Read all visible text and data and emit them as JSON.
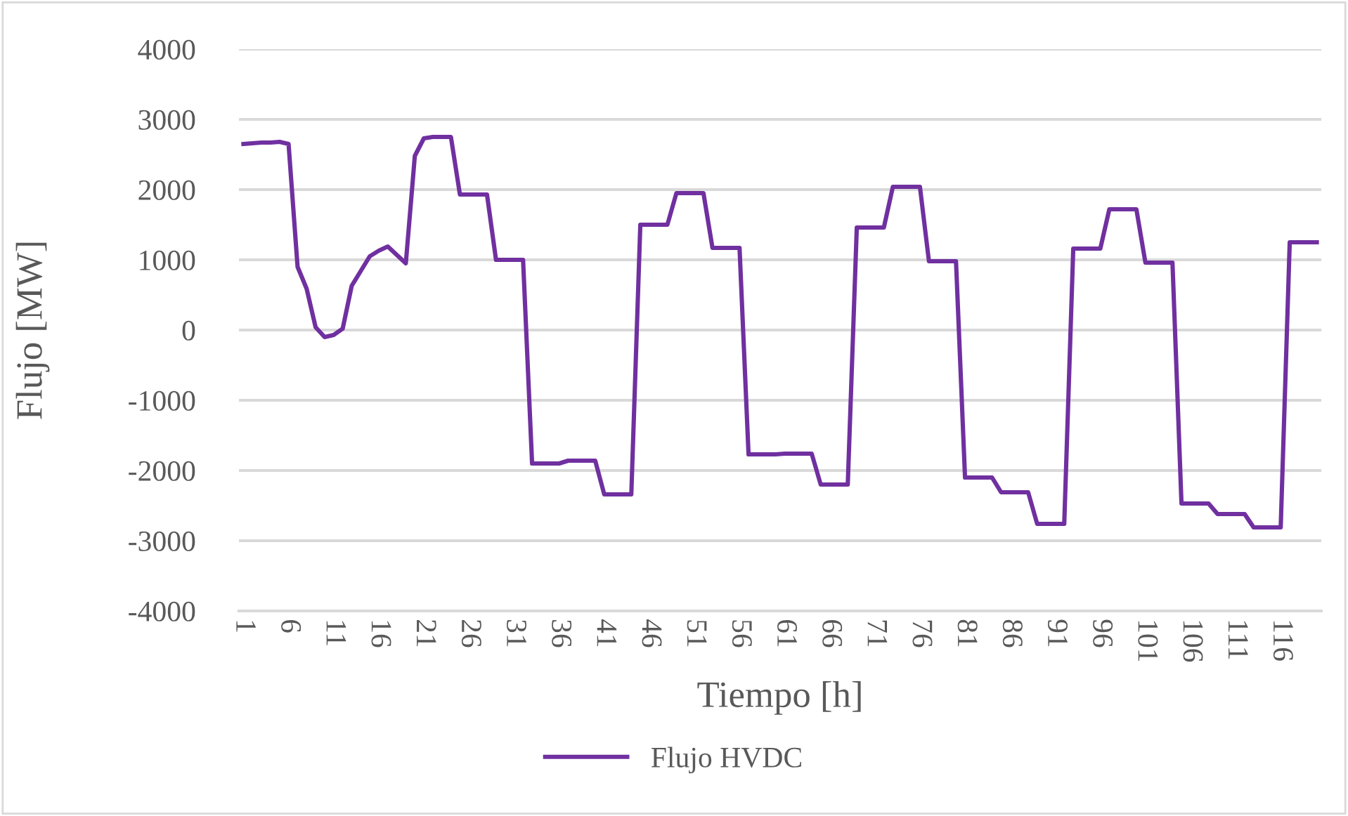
{
  "chart_data": {
    "type": "line",
    "xlabel": "Tiempo [h]",
    "ylabel": "Flujo [MW]",
    "categories": [
      "1",
      null,
      null,
      null,
      null,
      "6",
      null,
      null,
      null,
      null,
      "11",
      null,
      null,
      null,
      null,
      "16",
      null,
      null,
      null,
      null,
      "21",
      null,
      null,
      null,
      null,
      "26",
      null,
      null,
      null,
      null,
      "31",
      null,
      null,
      null,
      null,
      "36",
      null,
      null,
      null,
      null,
      "41",
      null,
      null,
      null,
      null,
      "46",
      null,
      null,
      null,
      null,
      "51",
      null,
      null,
      null,
      null,
      "56",
      null,
      null,
      null,
      null,
      "61",
      null,
      null,
      null,
      null,
      "66",
      null,
      null,
      null,
      null,
      "71",
      null,
      null,
      null,
      null,
      "76",
      null,
      null,
      null,
      null,
      "81",
      null,
      null,
      null,
      null,
      "86",
      null,
      null,
      null,
      null,
      "91",
      null,
      null,
      null,
      null,
      "96",
      null,
      null,
      null,
      null,
      "101",
      null,
      null,
      null,
      null,
      "106",
      null,
      null,
      null,
      null,
      "111",
      null,
      null,
      null,
      null,
      "116",
      null,
      null,
      null,
      null
    ],
    "series": [
      {
        "name": "Flujo HVDC",
        "color": "#7030a0",
        "values": [
          2650,
          2660,
          2670,
          2670,
          2680,
          2650,
          900,
          590,
          40,
          -100,
          -70,
          20,
          630,
          840,
          1050,
          1130,
          1190,
          1070,
          950,
          2480,
          2730,
          2750,
          2750,
          2750,
          1930,
          1930,
          1930,
          1930,
          1000,
          1000,
          1000,
          1000,
          -1900,
          -1900,
          -1900,
          -1900,
          -1860,
          -1860,
          -1860,
          -1860,
          -2340,
          -2340,
          -2340,
          -2340,
          1500,
          1500,
          1500,
          1500,
          1950,
          1950,
          1950,
          1950,
          1170,
          1170,
          1170,
          1170,
          -1770,
          -1770,
          -1770,
          -1770,
          -1760,
          -1760,
          -1760,
          -1760,
          -2200,
          -2200,
          -2200,
          -2200,
          1460,
          1460,
          1460,
          1460,
          2040,
          2040,
          2040,
          2040,
          980,
          980,
          980,
          980,
          -2100,
          -2100,
          -2100,
          -2100,
          -2310,
          -2310,
          -2310,
          -2310,
          -2760,
          -2760,
          -2760,
          -2760,
          1160,
          1160,
          1160,
          1160,
          1720,
          1720,
          1720,
          1720,
          960,
          960,
          960,
          960,
          -2470,
          -2470,
          -2470,
          -2470,
          -2620,
          -2620,
          -2620,
          -2620,
          -2810,
          -2810,
          -2810,
          -2810,
          1250,
          1250,
          1250,
          1250
        ]
      }
    ],
    "ylim": [
      -4000,
      4000
    ],
    "yticks": [
      -4000,
      -3000,
      -2000,
      -1000,
      0,
      1000,
      2000,
      3000,
      4000
    ],
    "grid": "y",
    "legend": "bottom",
    "marker": "none",
    "line_style": "solid"
  }
}
